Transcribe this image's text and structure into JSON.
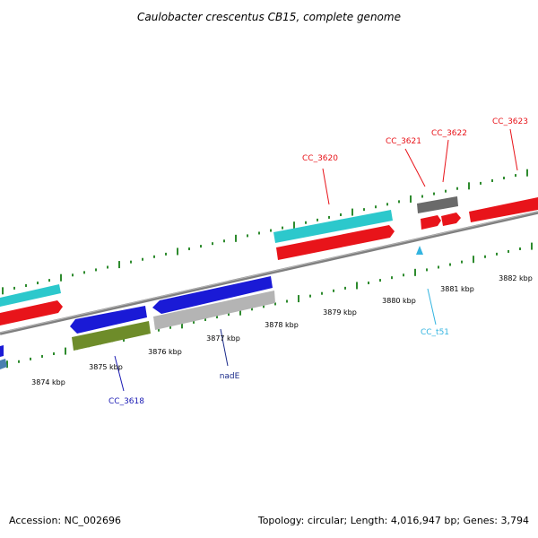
{
  "title": "Caulobacter crescentus CB15, complete genome",
  "footer": {
    "accession": "Accession: NC_002696",
    "summary": "Topology: circular; Length: 4,016,947 bp; Genes: 3,794"
  },
  "colors": {
    "backbone": "#8a8a8a",
    "tick": "#2e8b2e",
    "red_gene": "#e8141a",
    "cyan_gene": "#2cc8cc",
    "blue_gene": "#1a1ad6",
    "olive_gene": "#6e8c2a",
    "gray_gene": "#b4b4b4",
    "dark_gray_gene": "#6a6a6a",
    "trna": "#33b4e0",
    "label_red": "#e8141a",
    "label_blue": "#1a1ab4",
    "label_navy": "#1a2a8a",
    "label_cyan": "#33b4e0"
  },
  "scale": {
    "tick_labels": [
      "3874 kbp",
      "3875 kbp",
      "3876 kbp",
      "3877 kbp",
      "3878 kbp",
      "3879 kbp",
      "3880 kbp",
      "3881 kbp",
      "3882 kbp"
    ]
  },
  "gene_labels": [
    {
      "id": "cc3618",
      "text": "CC_3618",
      "color": "label_blue"
    },
    {
      "id": "nade",
      "text": "nadE",
      "color": "label_navy"
    },
    {
      "id": "cc3620",
      "text": "CC_3620",
      "color": "label_red"
    },
    {
      "id": "cc3621",
      "text": "CC_3621",
      "color": "label_red"
    },
    {
      "id": "cc3622",
      "text": "CC_3622",
      "color": "label_red"
    },
    {
      "id": "cc3623",
      "text": "CC_3623",
      "color": "label_red"
    },
    {
      "id": "cct51",
      "text": "CC_t51",
      "color": "label_cyan"
    }
  ]
}
